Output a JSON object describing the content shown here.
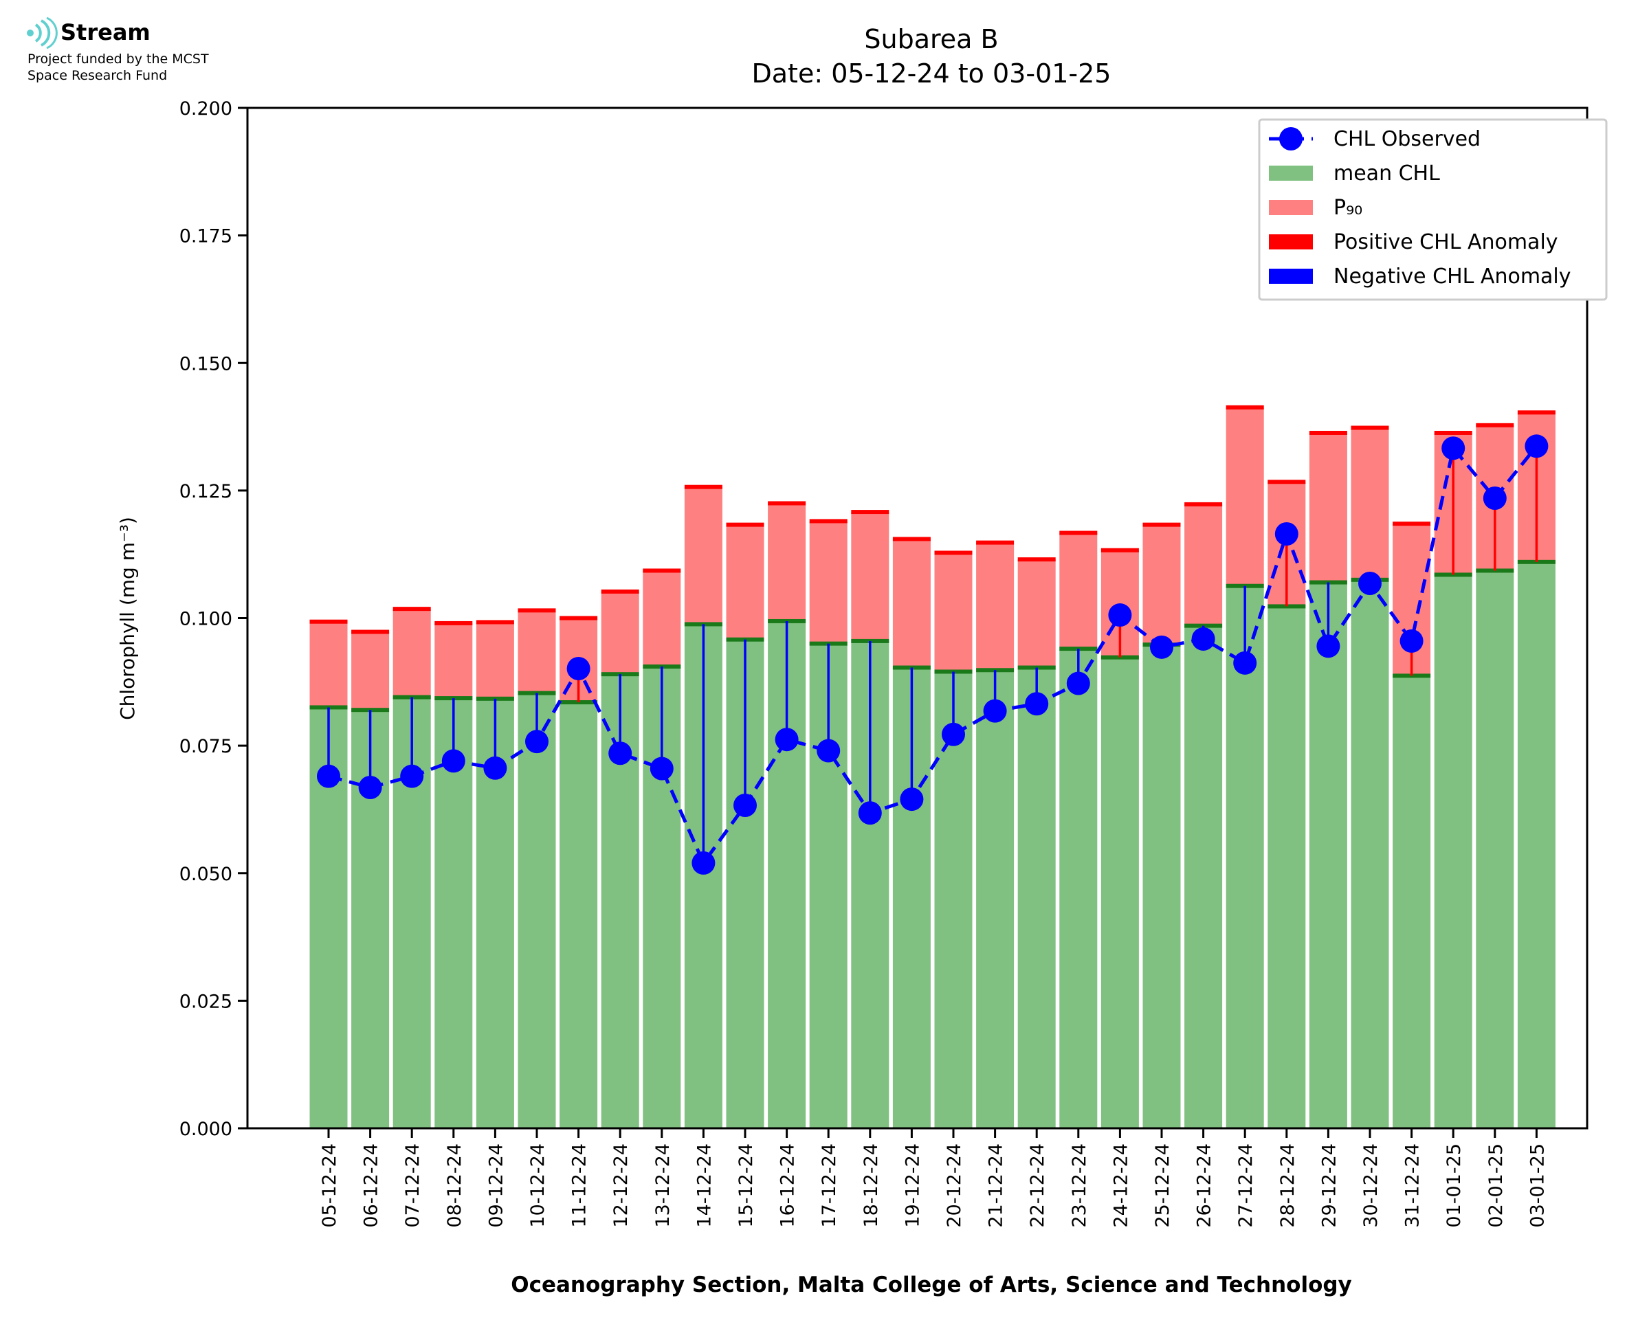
{
  "logo": {
    "brand": "Stream",
    "funding_line1": "Project funded by the MCST",
    "funding_line2": "Space Research Fund",
    "color": "#5fd0cf"
  },
  "chart_data": {
    "type": "bar",
    "title": "Subarea B",
    "subtitle": "Date: 05-12-24 to 03-01-25",
    "xlabel": "Oceanography Section, Malta College of Arts, Science and Technology",
    "ylabel": "Chlorophyll (mg m⁻³)",
    "ylim": [
      0,
      0.2
    ],
    "yticks": [
      "0.000",
      "0.025",
      "0.050",
      "0.075",
      "0.100",
      "0.125",
      "0.150",
      "0.175",
      "0.200"
    ],
    "grid": false,
    "legend_position": "top-right",
    "categories": [
      "05-12-24",
      "06-12-24",
      "07-12-24",
      "08-12-24",
      "09-12-24",
      "10-12-24",
      "11-12-24",
      "12-12-24",
      "13-12-24",
      "14-12-24",
      "15-12-24",
      "16-12-24",
      "17-12-24",
      "18-12-24",
      "19-12-24",
      "20-12-24",
      "21-12-24",
      "22-12-24",
      "23-12-24",
      "24-12-24",
      "25-12-24",
      "26-12-24",
      "27-12-24",
      "28-12-24",
      "29-12-24",
      "30-12-24",
      "31-12-24",
      "01-01-25",
      "02-01-25",
      "03-01-25"
    ],
    "series": [
      {
        "name": "CHL Observed",
        "style": "dashed-line-markers",
        "color": "#0000ff",
        "values": [
          0.069,
          0.0668,
          0.069,
          0.072,
          0.0706,
          0.0758,
          0.0901,
          0.0735,
          0.0705,
          0.052,
          0.0633,
          0.0762,
          0.074,
          0.0618,
          0.0645,
          0.0772,
          0.0818,
          0.0832,
          0.0872,
          0.1006,
          0.0943,
          0.0959,
          0.0912,
          0.1165,
          0.0945,
          0.1068,
          0.0955,
          0.1333,
          0.1235,
          0.1337
        ]
      },
      {
        "name": "mean CHL",
        "style": "bar",
        "color": "#80c080",
        "values": [
          0.0825,
          0.082,
          0.0845,
          0.0843,
          0.0842,
          0.0853,
          0.0835,
          0.089,
          0.0905,
          0.0988,
          0.0958,
          0.0994,
          0.095,
          0.0955,
          0.0903,
          0.0895,
          0.0898,
          0.0903,
          0.094,
          0.0923,
          0.0948,
          0.0985,
          0.1063,
          0.1023,
          0.107,
          0.1075,
          0.0887,
          0.1085,
          0.1093,
          0.111
        ]
      },
      {
        "name": "P₉₀",
        "style": "bar",
        "color": "#ff8080",
        "values": [
          0.0993,
          0.0973,
          0.1018,
          0.099,
          0.0992,
          0.1015,
          0.1,
          0.1052,
          0.1093,
          0.1257,
          0.1183,
          0.1225,
          0.119,
          0.1208,
          0.1155,
          0.1128,
          0.1148,
          0.1115,
          0.1167,
          0.1133,
          0.1183,
          0.1223,
          0.1413,
          0.1267,
          0.1363,
          0.1373,
          0.1185,
          0.1363,
          0.1378,
          0.1403
        ]
      },
      {
        "name": "Positive CHL Anomaly",
        "style": "bar",
        "color": "#ff0000"
      },
      {
        "name": "Negative CHL Anomaly",
        "style": "bar",
        "color": "#0000ff"
      }
    ],
    "colors": {
      "mean": "#80c080",
      "p90": "#ff8080",
      "mean_edge": "#1a7a1a",
      "p90_edge": "#ff0000",
      "positive": "#ff0000",
      "negative": "#0000ff",
      "observed": "#0000ff"
    }
  }
}
